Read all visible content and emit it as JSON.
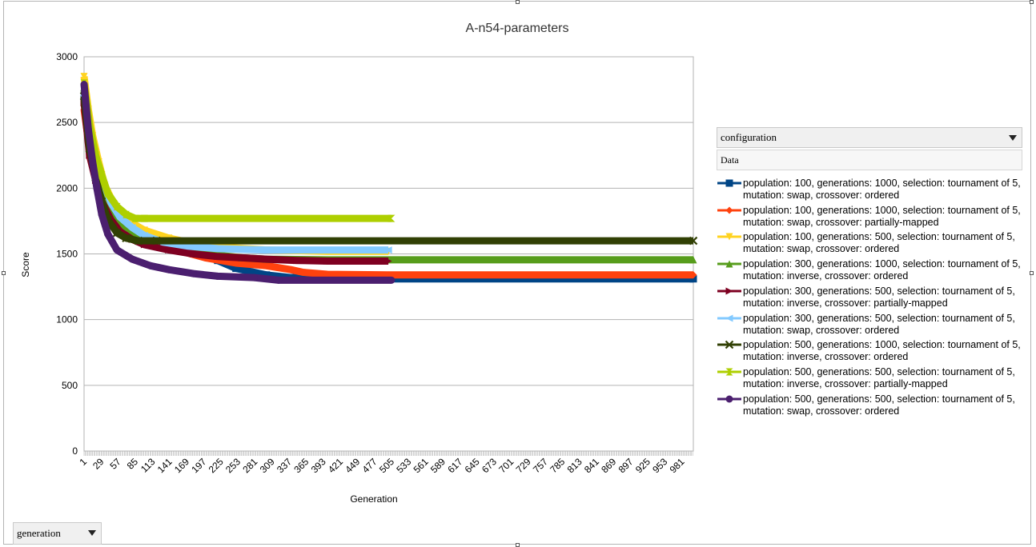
{
  "window": {
    "config_dropdown": "configuration",
    "data_label": "Data",
    "generation_dropdown": "generation"
  },
  "chart_data": {
    "type": "line",
    "title": "A-n54-parameters",
    "xlabel": "Generation",
    "ylabel": "Score",
    "ylim": [
      0,
      3000
    ],
    "xlim": [
      1,
      1000
    ],
    "yticks": [
      0,
      500,
      1000,
      1500,
      2000,
      2500,
      3000
    ],
    "xticks": [
      1,
      29,
      57,
      85,
      113,
      141,
      169,
      197,
      225,
      253,
      281,
      309,
      337,
      365,
      393,
      421,
      449,
      477,
      505,
      533,
      561,
      589,
      617,
      645,
      673,
      701,
      729,
      757,
      785,
      813,
      841,
      869,
      897,
      925,
      953,
      981
    ],
    "grid": true,
    "legend_position": "right",
    "series": [
      {
        "name": "population: 100, generations: 1000, selection: tournament of 5, mutation: swap, crossover: ordered",
        "color": "#004586",
        "marker": "square",
        "points": [
          [
            1,
            2680
          ],
          [
            10,
            2380
          ],
          [
            20,
            2180
          ],
          [
            30,
            2050
          ],
          [
            45,
            1870
          ],
          [
            60,
            1760
          ],
          [
            80,
            1690
          ],
          [
            100,
            1660
          ],
          [
            130,
            1620
          ],
          [
            150,
            1580
          ],
          [
            180,
            1520
          ],
          [
            220,
            1450
          ],
          [
            250,
            1390
          ],
          [
            300,
            1340
          ],
          [
            340,
            1320
          ],
          [
            400,
            1310
          ],
          [
            500,
            1310
          ],
          [
            1000,
            1310
          ]
        ]
      },
      {
        "name": "population: 100, generations: 1000, selection: tournament of 5, mutation: swap, crossover: partially-mapped",
        "color": "#ff420e",
        "marker": "diamond",
        "points": [
          [
            1,
            2600
          ],
          [
            10,
            2300
          ],
          [
            20,
            2100
          ],
          [
            30,
            1940
          ],
          [
            45,
            1780
          ],
          [
            60,
            1680
          ],
          [
            80,
            1620
          ],
          [
            100,
            1580
          ],
          [
            130,
            1550
          ],
          [
            160,
            1520
          ],
          [
            200,
            1470
          ],
          [
            250,
            1430
          ],
          [
            300,
            1410
          ],
          [
            340,
            1380
          ],
          [
            360,
            1360
          ],
          [
            400,
            1345
          ],
          [
            500,
            1340
          ],
          [
            1000,
            1340
          ]
        ]
      },
      {
        "name": "population: 100, generations: 500, selection: tournament of 5, mutation: swap, crossover: ordered",
        "color": "#ffd320",
        "marker": "triangle-down",
        "points": [
          [
            1,
            2850
          ],
          [
            8,
            2600
          ],
          [
            15,
            2400
          ],
          [
            25,
            2200
          ],
          [
            35,
            2020
          ],
          [
            50,
            1880
          ],
          [
            70,
            1760
          ],
          [
            100,
            1680
          ],
          [
            140,
            1620
          ],
          [
            200,
            1560
          ],
          [
            300,
            1530
          ],
          [
            400,
            1520
          ],
          [
            500,
            1520
          ]
        ]
      },
      {
        "name": "population: 300, generations: 1000, selection: tournament of 5, mutation: inverse, crossover: ordered",
        "color": "#579d1c",
        "marker": "triangle-up",
        "points": [
          [
            1,
            2750
          ],
          [
            10,
            2350
          ],
          [
            20,
            2150
          ],
          [
            30,
            1990
          ],
          [
            45,
            1820
          ],
          [
            60,
            1720
          ],
          [
            80,
            1640
          ],
          [
            100,
            1600
          ],
          [
            140,
            1560
          ],
          [
            180,
            1530
          ],
          [
            220,
            1490
          ],
          [
            260,
            1470
          ],
          [
            300,
            1460
          ],
          [
            400,
            1455
          ],
          [
            1000,
            1455
          ]
        ]
      },
      {
        "name": "population: 300, generations: 500, selection: tournament of 5, mutation: inverse, crossover: partially-mapped",
        "color": "#7e0021",
        "marker": "triangle-right",
        "points": [
          [
            1,
            2650
          ],
          [
            10,
            2250
          ],
          [
            20,
            2060
          ],
          [
            30,
            1900
          ],
          [
            45,
            1760
          ],
          [
            60,
            1670
          ],
          [
            80,
            1610
          ],
          [
            100,
            1570
          ],
          [
            140,
            1530
          ],
          [
            180,
            1500
          ],
          [
            220,
            1480
          ],
          [
            260,
            1470
          ],
          [
            300,
            1460
          ],
          [
            350,
            1450
          ],
          [
            400,
            1445
          ],
          [
            500,
            1445
          ]
        ]
      },
      {
        "name": "population: 300, generations: 500, selection: tournament of 5, mutation: swap, crossover: ordered",
        "color": "#83caff",
        "marker": "triangle-left",
        "points": [
          [
            1,
            2720
          ],
          [
            10,
            2400
          ],
          [
            20,
            2220
          ],
          [
            30,
            2080
          ],
          [
            45,
            1890
          ],
          [
            60,
            1780
          ],
          [
            80,
            1700
          ],
          [
            100,
            1640
          ],
          [
            130,
            1590
          ],
          [
            170,
            1560
          ],
          [
            220,
            1540
          ],
          [
            300,
            1530
          ],
          [
            500,
            1530
          ]
        ]
      },
      {
        "name": "population: 500, generations: 1000, selection: tournament of 5, mutation: inverse, crossover: ordered",
        "color": "#314004",
        "marker": "x",
        "points": [
          [
            1,
            2700
          ],
          [
            10,
            2300
          ],
          [
            20,
            2080
          ],
          [
            30,
            1900
          ],
          [
            40,
            1760
          ],
          [
            55,
            1660
          ],
          [
            70,
            1620
          ],
          [
            90,
            1600
          ],
          [
            120,
            1600
          ],
          [
            1000,
            1600
          ]
        ]
      },
      {
        "name": "population: 500, generations: 500, selection: tournament of 5, mutation: inverse, crossover: partially-mapped",
        "color": "#aecf00",
        "marker": "hourglass",
        "points": [
          [
            1,
            2800
          ],
          [
            10,
            2480
          ],
          [
            20,
            2250
          ],
          [
            30,
            2100
          ],
          [
            40,
            1960
          ],
          [
            55,
            1860
          ],
          [
            70,
            1800
          ],
          [
            85,
            1770
          ],
          [
            100,
            1770
          ],
          [
            505,
            1770
          ]
        ]
      },
      {
        "name": "population: 500, generations: 500, selection: tournament of 5, mutation: swap, crossover: ordered",
        "color": "#4b1f6f",
        "marker": "circle",
        "points": [
          [
            1,
            2790
          ],
          [
            8,
            2450
          ],
          [
            15,
            2200
          ],
          [
            22,
            2000
          ],
          [
            30,
            1800
          ],
          [
            40,
            1650
          ],
          [
            55,
            1530
          ],
          [
            80,
            1460
          ],
          [
            110,
            1410
          ],
          [
            140,
            1380
          ],
          [
            180,
            1350
          ],
          [
            220,
            1330
          ],
          [
            280,
            1320
          ],
          [
            320,
            1300
          ],
          [
            505,
            1300
          ]
        ]
      }
    ]
  }
}
